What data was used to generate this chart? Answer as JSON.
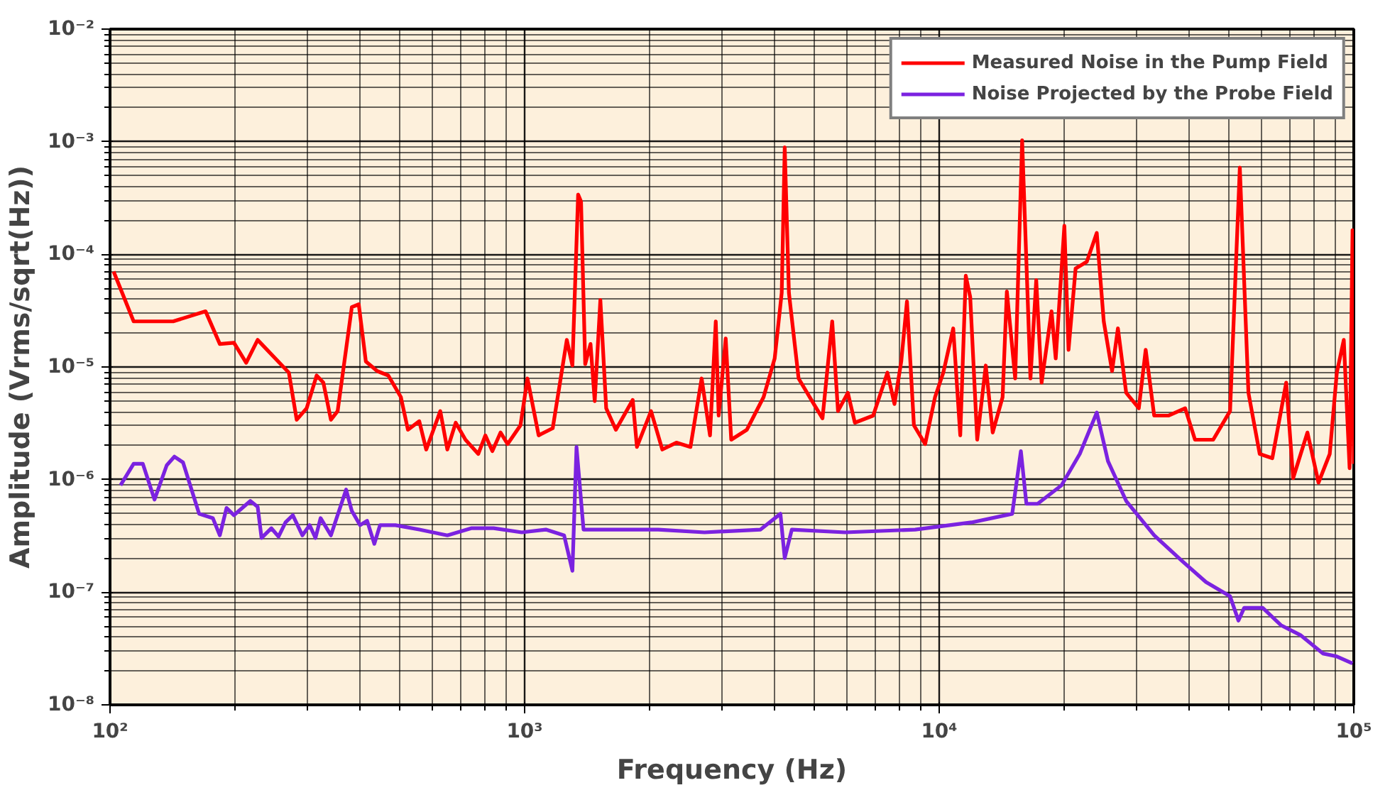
{
  "chart_data": {
    "type": "line",
    "xlabel": "Frequency (Hz)",
    "ylabel": "Amplitude (Vrms/sqrt(Hz))",
    "log": "xy",
    "grid": true,
    "legend": "top right",
    "xlim": [
      100,
      100000
    ],
    "ylim": [
      1e-08,
      0.01
    ],
    "xticks": [
      {
        "value": 100,
        "label": "10²"
      },
      {
        "value": 1000,
        "label": "10³"
      },
      {
        "value": 10000,
        "label": "10⁴"
      },
      {
        "value": 100000,
        "label": "10⁵"
      }
    ],
    "yticks": [
      {
        "value": 1e-08,
        "label": "10⁻⁸"
      },
      {
        "value": 1e-07,
        "label": "10⁻⁷"
      },
      {
        "value": 1e-06,
        "label": "10⁻⁶"
      },
      {
        "value": 1e-05,
        "label": "10⁻⁵"
      },
      {
        "value": 0.0001,
        "label": "10⁻⁴"
      },
      {
        "value": 0.001,
        "label": "10⁻³"
      },
      {
        "value": 0.01,
        "label": "10⁻²"
      }
    ],
    "series": [
      {
        "name": "Measured Noise in the Pump Field",
        "color": "#ff0000",
        "x": [
          102,
          114,
          142,
          170,
          184,
          199,
          213,
          227,
          270,
          282,
          298,
          315,
          327,
          341,
          354,
          383,
          398,
          414,
          441,
          469,
          503,
          523,
          557,
          579,
          626,
          651,
          682,
          720,
          773,
          804,
          836,
          875,
          910,
          977,
          1016,
          1081,
          1169,
          1264,
          1304,
          1346,
          1368,
          1400,
          1442,
          1476,
          1523,
          1573,
          1660,
          1823,
          1866,
          2018,
          2148,
          2323,
          2512,
          2673,
          2800,
          2891,
          2938,
          3055,
          3150,
          3435,
          3770,
          4010,
          4170,
          4240,
          4340,
          4580,
          5030,
          5230,
          5520,
          5700,
          6020,
          6260,
          6930,
          7500,
          7800,
          8100,
          8360,
          8690,
          9250,
          9770,
          10230,
          10810,
          11240,
          11590,
          11880,
          12350,
          12950,
          13460,
          14220,
          14560,
          15250,
          15850,
          16600,
          17140,
          17660,
          18660,
          19100,
          20040,
          20510,
          21330,
          22700,
          23990,
          24940,
          26120,
          26980,
          28250,
          30300,
          31480,
          33000,
          35700,
          39200,
          41400,
          45800,
          50300,
          53100,
          55700,
          59300,
          63600,
          68700,
          71400,
          77300,
          82200,
          87500,
          91000,
          94600,
          97700,
          99300,
          100000
        ],
        "values": [
          7.05e-05,
          2.54e-05,
          2.54e-05,
          3.12e-05,
          1.6e-05,
          1.64e-05,
          1.09e-05,
          1.74e-05,
          8.9e-06,
          3.4e-06,
          4.3e-06,
          8.4e-06,
          7.26e-06,
          3.4e-06,
          4.06e-06,
          3.4e-05,
          3.6e-05,
          1.12e-05,
          9.2e-06,
          8.4e-06,
          5.4e-06,
          2.77e-06,
          3.3e-06,
          1.85e-06,
          4.06e-06,
          1.85e-06,
          3.2e-06,
          2.26e-06,
          1.69e-06,
          2.47e-06,
          1.79e-06,
          2.62e-06,
          2.07e-06,
          3.03e-06,
          7.9e-06,
          2.47e-06,
          2.86e-06,
          1.74e-05,
          1.03e-05,
          0.00034,
          0.000294,
          1.06e-05,
          1.6e-05,
          4.97e-06,
          3.94e-05,
          4.3e-06,
          2.77e-06,
          5.1e-06,
          1.95e-06,
          4.06e-06,
          1.85e-06,
          2.13e-06,
          1.95e-06,
          7.9e-06,
          2.47e-06,
          2.54e-05,
          3.7e-06,
          1.79e-05,
          2.26e-06,
          2.77e-06,
          5.4e-06,
          1.19e-05,
          4.55e-05,
          0.00089,
          4.55e-05,
          7.9e-06,
          4.43e-06,
          3.5e-06,
          2.54e-05,
          4.06e-06,
          5.9e-06,
          3.2e-06,
          3.7e-06,
          8.9e-06,
          4.69e-06,
          1.12e-05,
          3.82e-05,
          3.03e-06,
          2.07e-06,
          5.4e-06,
          8.9e-06,
          2.2e-05,
          2.47e-06,
          6.46e-05,
          4.17e-05,
          2.26e-06,
          1.03e-05,
          2.62e-06,
          5.4e-06,
          4.69e-05,
          7.9e-06,
          0.00103,
          7.9e-06,
          5.9e-05,
          7.26e-06,
          3.12e-05,
          1.19e-05,
          0.000179,
          1.42e-05,
          7.5e-05,
          8.6e-05,
          0.000155,
          2.54e-05,
          9.2e-06,
          2.2e-05,
          5.9e-06,
          4.3e-06,
          1.42e-05,
          3.7e-06,
          3.7e-06,
          4.3e-06,
          2.26e-06,
          2.26e-06,
          4.06e-06,
          0.00059,
          5.9e-06,
          1.69e-06,
          1.55e-06,
          7.26e-06,
          1.03e-06,
          2.62e-06,
          9.4e-07,
          1.69e-06,
          8.9e-06,
          1.74e-05,
          1.26e-06,
          0.000164,
          1.38e-06
        ]
      },
      {
        "name": "Noise Projected by the Probe Field",
        "color": "#7b22e0",
        "x": [
          106,
          114,
          120,
          128,
          137,
          143,
          150,
          164,
          177,
          184,
          191,
          199,
          218,
          227,
          232,
          245,
          255,
          265,
          276,
          291,
          303,
          313,
          322,
          341,
          371,
          383,
          401,
          417,
          434,
          448,
          488,
          557,
          651,
          743,
          842,
          984,
          1125,
          1245,
          1304,
          1334,
          1387,
          1622,
          2099,
          2716,
          3707,
          4140,
          4240,
          4410,
          5930,
          8750,
          11970,
          15000,
          15740,
          16230,
          17270,
          19720,
          21830,
          23990,
          25530,
          28250,
          33000,
          38500,
          44000,
          50300,
          52700,
          54400,
          60300,
          66700,
          74300,
          84200,
          91000,
          99300
        ],
        "values": [
          8.9e-07,
          1.38e-06,
          1.38e-06,
          6.65e-07,
          1.34e-06,
          1.6e-06,
          1.42e-06,
          4.97e-07,
          4.55e-07,
          3.2e-07,
          5.6e-07,
          4.83e-07,
          6.46e-07,
          5.74e-07,
          3.03e-07,
          3.7e-07,
          3.12e-07,
          4.17e-07,
          4.83e-07,
          3.2e-07,
          3.94e-07,
          3.03e-07,
          4.55e-07,
          3.2e-07,
          8.15e-07,
          5.27e-07,
          3.94e-07,
          4.3e-07,
          2.69e-07,
          3.94e-07,
          3.94e-07,
          3.6e-07,
          3.2e-07,
          3.7e-07,
          3.7e-07,
          3.4e-07,
          3.6e-07,
          3.2e-07,
          1.55e-07,
          1.95e-06,
          3.6e-07,
          3.6e-07,
          3.6e-07,
          3.4e-07,
          3.6e-07,
          4.97e-07,
          2.01e-07,
          3.6e-07,
          3.4e-07,
          3.6e-07,
          4.17e-07,
          4.97e-07,
          1.79e-06,
          6.1e-07,
          6.1e-07,
          8.9e-07,
          1.69e-06,
          3.94e-06,
          1.46e-06,
          6.46e-07,
          3.2e-07,
          1.9e-07,
          1.23e-07,
          9.2e-08,
          5.6e-08,
          7.26e-08,
          7.26e-08,
          5.1e-08,
          4.17e-08,
          2.86e-08,
          2.69e-08,
          2.33e-08
        ]
      }
    ]
  }
}
